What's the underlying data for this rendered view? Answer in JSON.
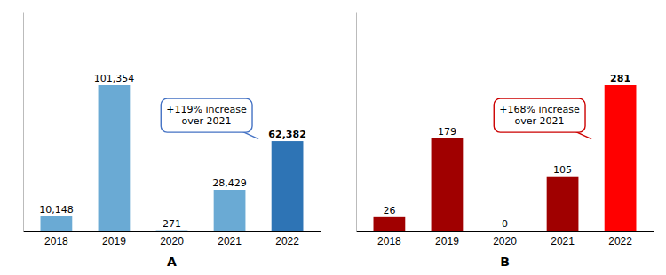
{
  "chart_data": [
    {
      "type": "bar",
      "xlabel": "A",
      "categories": [
        "2018",
        "2019",
        "2020",
        "2021",
        "2022"
      ],
      "values": [
        10148,
        101354,
        271,
        28429,
        62382
      ],
      "value_labels": [
        "10,148",
        "101,354",
        "271",
        "28,429",
        "62,382"
      ],
      "colors": [
        "#6aaad4",
        "#6aaad4",
        "#6aaad4",
        "#6aaad4",
        "#2e74b5"
      ],
      "ylim": [
        0,
        152031
      ],
      "grid": false,
      "data_labels": true,
      "tick_labels": "x",
      "annotations": [
        {
          "text": "+119% increase\nover 2021",
          "color": "#4472c4"
        }
      ]
    },
    {
      "type": "bar",
      "xlabel": "B",
      "categories": [
        "2018",
        "2019",
        "2020",
        "2021",
        "2022"
      ],
      "values": [
        26,
        179,
        0,
        105,
        281
      ],
      "colors": [
        "#a00000",
        "#a00000",
        "#a00000",
        "#a00000",
        "#ff0000"
      ],
      "ylim": [
        0,
        421.5
      ],
      "grid": false,
      "data_labels": true,
      "tick_labels": "x",
      "annotations": [
        {
          "text": "+168% increase\nover 2021",
          "color": "#cc0000"
        }
      ]
    }
  ]
}
